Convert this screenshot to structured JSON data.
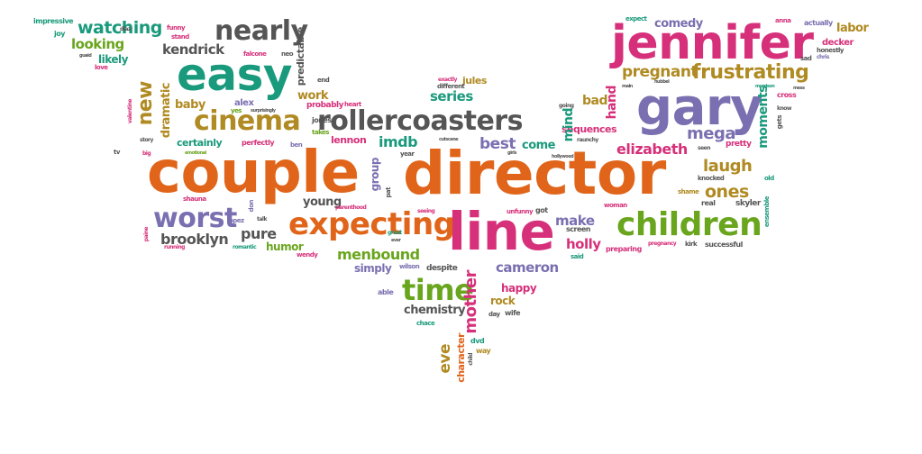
{
  "palette": {
    "orange": "#e0651a",
    "teal": "#1a9a7c",
    "purple": "#7a6fb0",
    "pink": "#d6307a",
    "green": "#6aa51e",
    "brown": "#b08a22",
    "gray": "#555555"
  },
  "words": [
    {
      "t": "couple",
      "c": "orange"
    },
    {
      "t": "director",
      "c": "orange"
    },
    {
      "t": "line",
      "c": "pink"
    },
    {
      "t": "jennifer",
      "c": "pink"
    },
    {
      "t": "gary",
      "c": "purple"
    },
    {
      "t": "easy",
      "c": "teal"
    },
    {
      "t": "children",
      "c": "green"
    },
    {
      "t": "expecting",
      "c": "orange"
    },
    {
      "t": "rollercoasters",
      "c": "gray"
    },
    {
      "t": "cinema",
      "c": "brown"
    },
    {
      "t": "nearly",
      "c": "gray"
    },
    {
      "t": "worst",
      "c": "purple"
    },
    {
      "t": "time",
      "c": "green"
    },
    {
      "t": "frustrating",
      "c": "brown"
    },
    {
      "t": "pregnant",
      "c": "brown"
    },
    {
      "t": "kendrick",
      "c": "gray"
    },
    {
      "t": "looking",
      "c": "green"
    },
    {
      "t": "watching",
      "c": "teal"
    },
    {
      "t": "new",
      "c": "brown"
    },
    {
      "t": "menbound",
      "c": "green"
    },
    {
      "t": "brooklyn",
      "c": "gray"
    },
    {
      "t": "pure",
      "c": "gray"
    },
    {
      "t": "humor",
      "c": "green"
    },
    {
      "t": "cameron",
      "c": "purple"
    },
    {
      "t": "mother",
      "c": "pink"
    },
    {
      "t": "eve",
      "c": "brown"
    },
    {
      "t": "character",
      "c": "orange"
    },
    {
      "t": "chemistry",
      "c": "gray"
    },
    {
      "t": "happy",
      "c": "pink"
    },
    {
      "t": "rock",
      "c": "brown"
    },
    {
      "t": "laugh",
      "c": "brown"
    },
    {
      "t": "ones",
      "c": "brown"
    },
    {
      "t": "mega",
      "c": "purple"
    },
    {
      "t": "elizabeth",
      "c": "pink"
    },
    {
      "t": "moments",
      "c": "teal"
    },
    {
      "t": "holly",
      "c": "pink"
    },
    {
      "t": "make",
      "c": "purple"
    },
    {
      "t": "series",
      "c": "teal"
    },
    {
      "t": "imdb",
      "c": "teal"
    },
    {
      "t": "lennon",
      "c": "pink"
    },
    {
      "t": "best",
      "c": "purple"
    },
    {
      "t": "come",
      "c": "teal"
    },
    {
      "t": "mind",
      "c": "teal"
    },
    {
      "t": "hand",
      "c": "pink"
    },
    {
      "t": "bad",
      "c": "brown"
    },
    {
      "t": "sequences",
      "c": "pink"
    },
    {
      "t": "work",
      "c": "brown"
    },
    {
      "t": "baby",
      "c": "brown"
    },
    {
      "t": "dramatic",
      "c": "brown"
    },
    {
      "t": "certainly",
      "c": "teal"
    },
    {
      "t": "comedy",
      "c": "purple"
    },
    {
      "t": "labor",
      "c": "brown"
    },
    {
      "t": "decker",
      "c": "pink"
    },
    {
      "t": "group",
      "c": "purple"
    },
    {
      "t": "young",
      "c": "gray"
    },
    {
      "t": "simply",
      "c": "purple"
    },
    {
      "t": "predictable",
      "c": "gray"
    },
    {
      "t": "alex",
      "c": "purple"
    },
    {
      "t": "likely",
      "c": "teal"
    },
    {
      "t": "impressive",
      "c": "teal"
    },
    {
      "t": "joy",
      "c": "teal"
    },
    {
      "t": "love",
      "c": "pink"
    },
    {
      "t": "funny",
      "c": "pink"
    },
    {
      "t": "stand",
      "c": "pink"
    },
    {
      "t": "falcone",
      "c": "pink"
    },
    {
      "t": "neo",
      "c": "gray"
    },
    {
      "t": "probably",
      "c": "pink"
    },
    {
      "t": "heart",
      "c": "pink"
    },
    {
      "t": "jones",
      "c": "gray"
    },
    {
      "t": "perfectly",
      "c": "pink"
    },
    {
      "t": "ben",
      "c": "purple"
    },
    {
      "t": "jules",
      "c": "brown"
    },
    {
      "t": "exactly",
      "c": "pink"
    },
    {
      "t": "different",
      "c": "gray"
    },
    {
      "t": "year",
      "c": "gray"
    },
    {
      "t": "pretty",
      "c": "pink"
    },
    {
      "t": "knocked",
      "c": "gray"
    },
    {
      "t": "shame",
      "c": "brown"
    },
    {
      "t": "real",
      "c": "gray"
    },
    {
      "t": "skyler",
      "c": "gray"
    },
    {
      "t": "woman",
      "c": "pink"
    },
    {
      "t": "screen",
      "c": "gray"
    },
    {
      "t": "preparing",
      "c": "pink"
    },
    {
      "t": "pregnancy",
      "c": "pink"
    },
    {
      "t": "kirk",
      "c": "gray"
    },
    {
      "t": "successful",
      "c": "gray"
    },
    {
      "t": "shauna",
      "c": "pink"
    },
    {
      "t": "lopez",
      "c": "purple"
    },
    {
      "t": "don",
      "c": "purple"
    },
    {
      "t": "talk",
      "c": "gray"
    },
    {
      "t": "romantic",
      "c": "teal"
    },
    {
      "t": "wendy",
      "c": "pink"
    },
    {
      "t": "running",
      "c": "pink"
    },
    {
      "t": "paine",
      "c": "pink"
    },
    {
      "t": "wilson",
      "c": "purple"
    },
    {
      "t": "despite",
      "c": "gray"
    },
    {
      "t": "able",
      "c": "purple"
    },
    {
      "t": "chace",
      "c": "teal"
    },
    {
      "t": "day",
      "c": "gray"
    },
    {
      "t": "wife",
      "c": "gray"
    },
    {
      "t": "dvd",
      "c": "teal"
    },
    {
      "t": "way",
      "c": "brown"
    },
    {
      "t": "child",
      "c": "gray"
    },
    {
      "t": "said",
      "c": "teal"
    },
    {
      "t": "unfunny",
      "c": "pink"
    },
    {
      "t": "got",
      "c": "gray"
    },
    {
      "t": "seeing",
      "c": "pink"
    },
    {
      "t": "parenthood",
      "c": "pink"
    },
    {
      "t": "pat",
      "c": "gray"
    },
    {
      "t": "cross",
      "c": "pink"
    },
    {
      "t": "ensemble",
      "c": "teal"
    },
    {
      "t": "old",
      "c": "teal"
    },
    {
      "t": "honestly",
      "c": "gray"
    },
    {
      "t": "chris",
      "c": "purple"
    },
    {
      "t": "sad",
      "c": "gray"
    },
    {
      "t": "gets",
      "c": "gray"
    },
    {
      "t": "anna",
      "c": "pink"
    },
    {
      "t": "actually",
      "c": "purple"
    },
    {
      "t": "expect",
      "c": "teal"
    },
    {
      "t": "valentine",
      "c": "pink"
    },
    {
      "t": "story",
      "c": "gray"
    },
    {
      "t": "big",
      "c": "pink"
    },
    {
      "t": "emotional",
      "c": "green"
    },
    {
      "t": "end",
      "c": "gray"
    },
    {
      "t": "yes",
      "c": "green"
    },
    {
      "t": "surprisingly",
      "c": "gray"
    },
    {
      "t": "takes",
      "c": "green"
    },
    {
      "t": "diaz",
      "c": "gray"
    },
    {
      "t": "great",
      "c": "teal"
    },
    {
      "t": "guaid",
      "c": "gray"
    },
    {
      "t": "hollywood",
      "c": "gray"
    },
    {
      "t": "seen",
      "c": "gray"
    },
    {
      "t": "going",
      "c": "gray"
    },
    {
      "t": "raunchy",
      "c": "gray"
    },
    {
      "t": "main",
      "c": "gray"
    },
    {
      "t": "morrison",
      "c": "teal"
    },
    {
      "t": "mess",
      "c": "gray"
    },
    {
      "t": "know",
      "c": "gray"
    },
    {
      "t": "tv",
      "c": "gray"
    },
    {
      "t": "girls",
      "c": "gray"
    },
    {
      "t": "cutscene",
      "c": "gray"
    },
    {
      "t": "hubbel",
      "c": "gray"
    },
    {
      "t": "ever",
      "c": "gray"
    }
  ]
}
